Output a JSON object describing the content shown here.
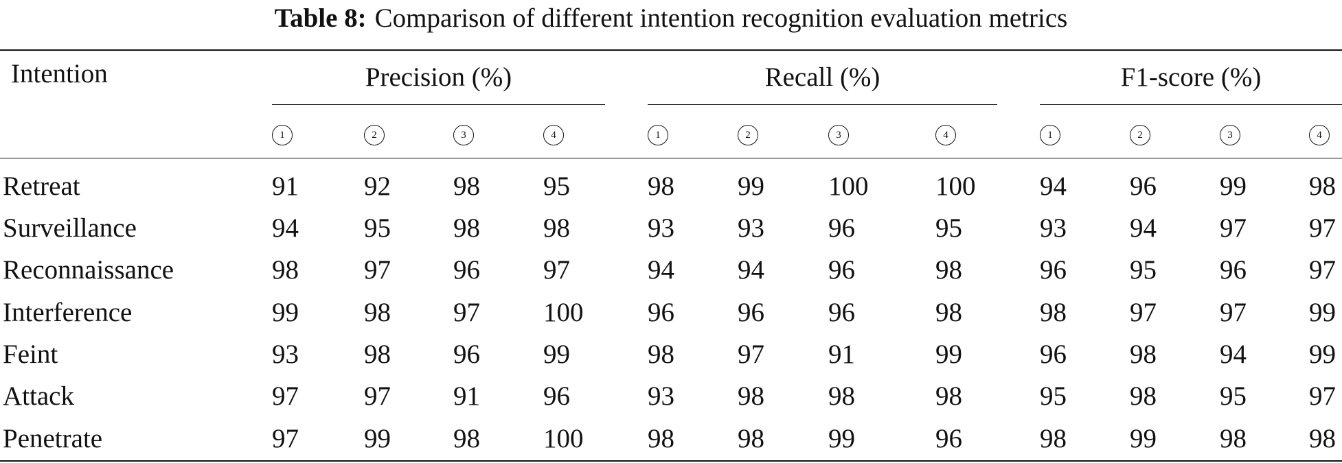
{
  "caption": {
    "label": "Table 8:",
    "text": "Comparison of different intention recognition evaluation metrics"
  },
  "table": {
    "corner": "Intention",
    "groups": [
      {
        "title": "Precision (%)",
        "subcolumns": [
          "1",
          "2",
          "3",
          "4"
        ]
      },
      {
        "title": "Recall (%)",
        "subcolumns": [
          "1",
          "2",
          "3",
          "4"
        ]
      },
      {
        "title": "F1-score (%)",
        "subcolumns": [
          "1",
          "2",
          "3",
          "4"
        ]
      }
    ],
    "rows": [
      {
        "label": "Retreat",
        "values": [
          91,
          92,
          98,
          95,
          98,
          99,
          100,
          100,
          94,
          96,
          99,
          98
        ]
      },
      {
        "label": "Surveillance",
        "values": [
          94,
          95,
          98,
          98,
          93,
          93,
          96,
          95,
          93,
          94,
          97,
          97
        ]
      },
      {
        "label": "Reconnaissance",
        "values": [
          98,
          97,
          96,
          97,
          94,
          94,
          96,
          98,
          96,
          95,
          96,
          97
        ]
      },
      {
        "label": "Interference",
        "values": [
          99,
          98,
          97,
          100,
          96,
          96,
          96,
          98,
          98,
          97,
          97,
          99
        ]
      },
      {
        "label": "Feint",
        "values": [
          93,
          98,
          96,
          99,
          98,
          97,
          91,
          99,
          96,
          98,
          94,
          99
        ]
      },
      {
        "label": "Attack",
        "values": [
          97,
          97,
          91,
          96,
          93,
          98,
          98,
          98,
          95,
          98,
          95,
          97
        ]
      },
      {
        "label": "Penetrate",
        "values": [
          97,
          99,
          98,
          100,
          98,
          98,
          99,
          96,
          98,
          99,
          98,
          98
        ]
      }
    ]
  }
}
